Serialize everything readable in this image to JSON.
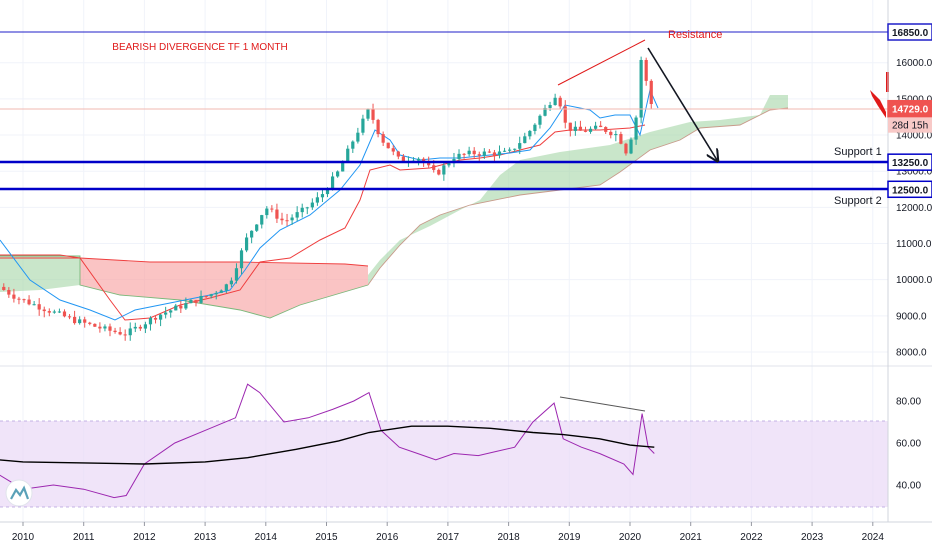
{
  "colors": {
    "up": "#26a69a",
    "down": "#ef5350",
    "tenkan": "#2196f3",
    "kijun": "#ef3e3e",
    "cloud_bull": "#a5d6a7",
    "cloud_bear": "#f8a5a5",
    "span_b": "#ef3e3e",
    "resistance_line": "#1f1fc8",
    "support_line": "#0000c8",
    "rsi": "#9c27b0",
    "rsi_ma": "#000000",
    "rsi_band": "#e9d8f7",
    "annotation_red": "#e01919",
    "arrow": "#131722"
  },
  "labels": {
    "title": "BEARISH DIVERGENCE TF 1 MONTH",
    "resistance": "Resistance",
    "support1": "Support 1",
    "support2": "Support 2",
    "countdown": "28d 15h"
  },
  "chart_data": [
    {
      "type": "candlestick",
      "timeframe": "1M",
      "ylim": [
        7700,
        17150
      ],
      "y_ticks": [
        8000,
        9000,
        10000,
        11000,
        12000,
        13000,
        14000,
        15000,
        16000
      ],
      "x_ticks": [
        "2010",
        "2011",
        "2012",
        "2013",
        "2014",
        "2015",
        "2016",
        "2017",
        "2018",
        "2019",
        "2020",
        "2021",
        "2022",
        "2023",
        "2024"
      ],
      "price_labels": [
        {
          "value": 16850.0,
          "text": "16850.0",
          "kind": "resistance"
        },
        {
          "value": 14729.0,
          "text": "14729.0",
          "kind": "last"
        },
        {
          "value": 13250.0,
          "text": "13250.0",
          "kind": "support1"
        },
        {
          "value": 12500.0,
          "text": "12500.0",
          "kind": "support2"
        }
      ],
      "horizontal_levels": [
        {
          "name": "Resistance",
          "value": 16850
        },
        {
          "name": "Support 1",
          "value": 13250
        },
        {
          "name": "Support 2",
          "value": 12500
        }
      ],
      "close_path": [
        {
          "x": 2009.6,
          "y": 9800
        },
        {
          "x": 2009.9,
          "y": 9500
        },
        {
          "x": 2010.2,
          "y": 9300
        },
        {
          "x": 2010.5,
          "y": 9100
        },
        {
          "x": 2010.8,
          "y": 8900
        },
        {
          "x": 2011.1,
          "y": 8750
        },
        {
          "x": 2011.4,
          "y": 8600
        },
        {
          "x": 2011.7,
          "y": 8500
        },
        {
          "x": 2011.9,
          "y": 8700
        },
        {
          "x": 2012.2,
          "y": 9000
        },
        {
          "x": 2012.5,
          "y": 9200
        },
        {
          "x": 2012.8,
          "y": 9400
        },
        {
          "x": 2013.1,
          "y": 9600
        },
        {
          "x": 2013.4,
          "y": 9900
        },
        {
          "x": 2013.7,
          "y": 11200
        },
        {
          "x": 2014.0,
          "y": 12000
        },
        {
          "x": 2014.3,
          "y": 11600
        },
        {
          "x": 2014.6,
          "y": 11900
        },
        {
          "x": 2014.9,
          "y": 12300
        },
        {
          "x": 2015.2,
          "y": 13000
        },
        {
          "x": 2015.45,
          "y": 13900
        },
        {
          "x": 2015.7,
          "y": 14700
        },
        {
          "x": 2015.9,
          "y": 13900
        },
        {
          "x": 2016.2,
          "y": 13300
        },
        {
          "x": 2016.5,
          "y": 13400
        },
        {
          "x": 2016.8,
          "y": 12900
        },
        {
          "x": 2017.1,
          "y": 13400
        },
        {
          "x": 2017.4,
          "y": 13500
        },
        {
          "x": 2017.7,
          "y": 13500
        },
        {
          "x": 2018.0,
          "y": 13500
        },
        {
          "x": 2018.3,
          "y": 14000
        },
        {
          "x": 2018.55,
          "y": 14600
        },
        {
          "x": 2018.8,
          "y": 15200
        },
        {
          "x": 2018.95,
          "y": 14200
        },
        {
          "x": 2019.2,
          "y": 14100
        },
        {
          "x": 2019.5,
          "y": 14200
        },
        {
          "x": 2019.8,
          "y": 14000
        },
        {
          "x": 2019.95,
          "y": 13500
        },
        {
          "x": 2020.1,
          "y": 14500
        },
        {
          "x": 2020.2,
          "y": 16400
        },
        {
          "x": 2020.3,
          "y": 15000
        },
        {
          "x": 2020.4,
          "y": 14729
        }
      ],
      "bearish_divergence_line": {
        "from": {
          "x": 2018.7,
          "y": 15500
        },
        "to": {
          "x": 2020.15,
          "y": 16700
        }
      },
      "projection_arrow": {
        "from": {
          "x": 2020.2,
          "y": 16400
        },
        "to": {
          "x": 2021.35,
          "y": 13250
        }
      }
    },
    {
      "type": "line",
      "name": "RSI",
      "ylim": [
        20,
        98
      ],
      "y_ticks": [
        40,
        60,
        80
      ],
      "band": [
        30,
        70
      ],
      "rsi": [
        {
          "x": 2009.6,
          "y": 45
        },
        {
          "x": 2010.0,
          "y": 38
        },
        {
          "x": 2010.5,
          "y": 40
        },
        {
          "x": 2011.0,
          "y": 38
        },
        {
          "x": 2011.5,
          "y": 34
        },
        {
          "x": 2011.7,
          "y": 35
        },
        {
          "x": 2012.0,
          "y": 50
        },
        {
          "x": 2012.5,
          "y": 60
        },
        {
          "x": 2013.0,
          "y": 66
        },
        {
          "x": 2013.5,
          "y": 72
        },
        {
          "x": 2013.7,
          "y": 88
        },
        {
          "x": 2013.9,
          "y": 84
        },
        {
          "x": 2014.3,
          "y": 70
        },
        {
          "x": 2014.7,
          "y": 72
        },
        {
          "x": 2015.1,
          "y": 76
        },
        {
          "x": 2015.45,
          "y": 80
        },
        {
          "x": 2015.7,
          "y": 84
        },
        {
          "x": 2015.9,
          "y": 66
        },
        {
          "x": 2016.2,
          "y": 58
        },
        {
          "x": 2016.5,
          "y": 55
        },
        {
          "x": 2016.8,
          "y": 52
        },
        {
          "x": 2017.1,
          "y": 55
        },
        {
          "x": 2017.5,
          "y": 54
        },
        {
          "x": 2017.8,
          "y": 56
        },
        {
          "x": 2018.1,
          "y": 58
        },
        {
          "x": 2018.4,
          "y": 70
        },
        {
          "x": 2018.75,
          "y": 79
        },
        {
          "x": 2018.9,
          "y": 62
        },
        {
          "x": 2019.2,
          "y": 58
        },
        {
          "x": 2019.5,
          "y": 55
        },
        {
          "x": 2019.9,
          "y": 50
        },
        {
          "x": 2020.05,
          "y": 45
        },
        {
          "x": 2020.2,
          "y": 74
        },
        {
          "x": 2020.3,
          "y": 58
        },
        {
          "x": 2020.4,
          "y": 55
        }
      ],
      "rsi_ma": [
        {
          "x": 2009.6,
          "y": 52
        },
        {
          "x": 2010.0,
          "y": 51
        },
        {
          "x": 2011.0,
          "y": 50.5
        },
        {
          "x": 2012.0,
          "y": 50
        },
        {
          "x": 2013.0,
          "y": 51
        },
        {
          "x": 2013.7,
          "y": 53
        },
        {
          "x": 2014.5,
          "y": 57
        },
        {
          "x": 2015.2,
          "y": 61
        },
        {
          "x": 2015.7,
          "y": 65
        },
        {
          "x": 2016.4,
          "y": 68
        },
        {
          "x": 2017.0,
          "y": 68
        },
        {
          "x": 2017.7,
          "y": 67
        },
        {
          "x": 2018.4,
          "y": 65
        },
        {
          "x": 2018.9,
          "y": 64
        },
        {
          "x": 2019.5,
          "y": 62
        },
        {
          "x": 2020.0,
          "y": 59
        },
        {
          "x": 2020.4,
          "y": 58
        }
      ],
      "bearish_divergence_line": {
        "from": {
          "x": 2018.72,
          "y": 81
        },
        "to": {
          "x": 2020.15,
          "y": 75
        }
      }
    }
  ]
}
